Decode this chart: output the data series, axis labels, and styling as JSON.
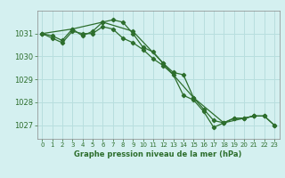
{
  "title": "Graphe pression niveau de la mer (hPa)",
  "background_color": "#d4f0f0",
  "grid_color": "#b8dede",
  "line_color": "#2d6e2d",
  "xlim": [
    -0.5,
    23.5
  ],
  "ylim": [
    1026.4,
    1032.0
  ],
  "yticks": [
    1027,
    1028,
    1029,
    1030,
    1031
  ],
  "xticks": [
    0,
    1,
    2,
    3,
    4,
    5,
    6,
    7,
    8,
    9,
    10,
    11,
    12,
    13,
    14,
    15,
    16,
    17,
    18,
    19,
    20,
    21,
    22,
    23
  ],
  "series1": {
    "x": [
      0,
      1,
      2,
      3,
      4,
      5,
      6,
      7,
      8,
      9,
      10,
      11,
      12,
      13,
      14,
      15,
      16,
      17,
      18,
      19,
      20,
      21,
      22,
      23
    ],
    "y": [
      1031.0,
      1030.9,
      1030.7,
      1031.2,
      1030.9,
      1031.1,
      1031.5,
      1031.6,
      1031.5,
      1031.0,
      1030.4,
      1030.2,
      1029.7,
      1029.3,
      1029.2,
      1028.2,
      1027.7,
      1027.2,
      1027.1,
      1027.3,
      1027.3,
      1027.4,
      1027.4,
      1027.0
    ]
  },
  "series2": {
    "x": [
      0,
      1,
      2,
      3,
      4,
      5,
      6,
      7,
      8,
      9,
      10,
      11,
      12,
      13,
      14,
      15,
      16,
      17,
      18,
      19,
      20,
      21,
      22,
      23
    ],
    "y": [
      1031.0,
      1030.8,
      1030.6,
      1031.1,
      1031.0,
      1031.0,
      1031.3,
      1031.2,
      1030.8,
      1030.6,
      1030.3,
      1029.9,
      1029.6,
      1029.2,
      1028.3,
      1028.1,
      1027.6,
      1026.9,
      1027.1,
      1027.3,
      1027.3,
      1027.4,
      1027.4,
      1027.0
    ]
  },
  "series3": {
    "x": [
      0,
      3,
      6,
      9,
      12,
      15,
      18,
      21
    ],
    "y": [
      1031.0,
      1031.2,
      1031.5,
      1031.1,
      1029.7,
      1028.2,
      1027.1,
      1027.4
    ]
  }
}
